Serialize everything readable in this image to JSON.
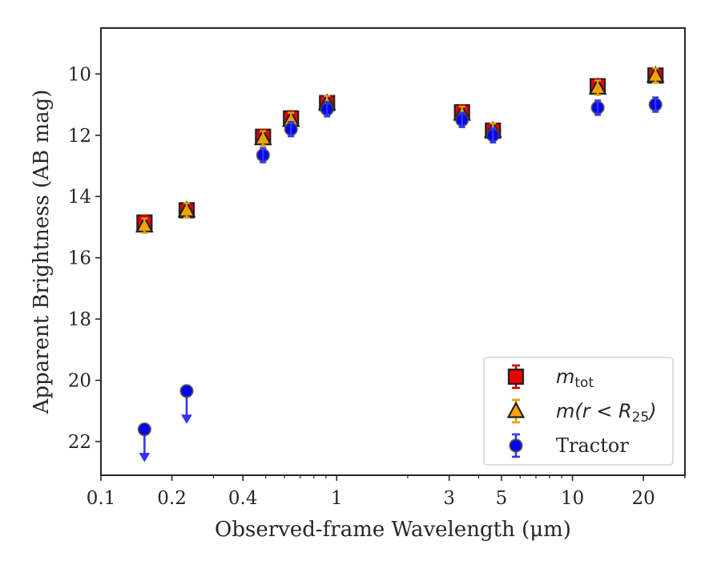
{
  "chart_data": {
    "type": "scatter",
    "title": "",
    "xlabel": "Observed-frame Wavelength (μm)",
    "ylabel": "Apparent Brightness (AB mag)",
    "xscale": "log",
    "yinvert": true,
    "xlim": [
      0.1,
      30
    ],
    "ylim": [
      23.1,
      8.5
    ],
    "xticks": [
      {
        "value": 0.1,
        "label": "0.1"
      },
      {
        "value": 0.2,
        "label": "0.2"
      },
      {
        "value": 0.4,
        "label": "0.4"
      },
      {
        "value": 1,
        "label": "1"
      },
      {
        "value": 3,
        "label": "3"
      },
      {
        "value": 5,
        "label": "5"
      },
      {
        "value": 10,
        "label": "10"
      },
      {
        "value": 20,
        "label": "20"
      }
    ],
    "yticks": [
      {
        "value": 10,
        "label": "10"
      },
      {
        "value": 12,
        "label": "12"
      },
      {
        "value": 14,
        "label": "14"
      },
      {
        "value": 16,
        "label": "16"
      },
      {
        "value": 18,
        "label": "18"
      },
      {
        "value": 20,
        "label": "20"
      },
      {
        "value": 22,
        "label": "22"
      }
    ],
    "legend_position": "lower-right",
    "series": [
      {
        "id": "mtot",
        "legend_main": "m",
        "legend_sub": "tot",
        "marker": "square",
        "face_color": "#e60000",
        "edge_color": "#222222",
        "err_color": "#cc0000",
        "points": [
          {
            "x": 0.153,
            "y": 14.85
          },
          {
            "x": 0.231,
            "y": 14.45
          },
          {
            "x": 0.487,
            "y": 12.05
          },
          {
            "x": 0.64,
            "y": 11.45
          },
          {
            "x": 0.91,
            "y": 10.95
          },
          {
            "x": 3.4,
            "y": 11.25
          },
          {
            "x": 4.6,
            "y": 11.85
          },
          {
            "x": 12.8,
            "y": 10.4
          },
          {
            "x": 22.5,
            "y": 10.05
          }
        ]
      },
      {
        "id": "mr25",
        "legend_main": "m(r < R",
        "legend_sub": "25",
        "legend_end": ")",
        "marker": "triangle",
        "face_color": "#ffa500",
        "edge_color": "#222222",
        "err_color": "#e6a000",
        "points": [
          {
            "x": 0.153,
            "y": 14.95
          },
          {
            "x": 0.231,
            "y": 14.45
          },
          {
            "x": 0.487,
            "y": 12.1
          },
          {
            "x": 0.64,
            "y": 11.5
          },
          {
            "x": 0.91,
            "y": 10.95
          },
          {
            "x": 3.4,
            "y": 11.3
          },
          {
            "x": 4.6,
            "y": 11.85
          },
          {
            "x": 12.8,
            "y": 10.45
          },
          {
            "x": 22.5,
            "y": 10.05
          }
        ]
      },
      {
        "id": "tractor",
        "legend_main": "Tractor",
        "marker": "circle",
        "face_color": "#0000ff",
        "edge_color": "#444444",
        "err_color": "#3333ff",
        "points": [
          {
            "x": 0.153,
            "y": 21.6,
            "upper_limit": true
          },
          {
            "x": 0.231,
            "y": 20.35,
            "upper_limit": true
          },
          {
            "x": 0.487,
            "y": 12.65
          },
          {
            "x": 0.64,
            "y": 11.8
          },
          {
            "x": 0.91,
            "y": 11.15
          },
          {
            "x": 3.4,
            "y": 11.5
          },
          {
            "x": 4.6,
            "y": 12.0
          },
          {
            "x": 12.8,
            "y": 11.1
          },
          {
            "x": 22.5,
            "y": 11.0
          }
        ]
      }
    ]
  }
}
